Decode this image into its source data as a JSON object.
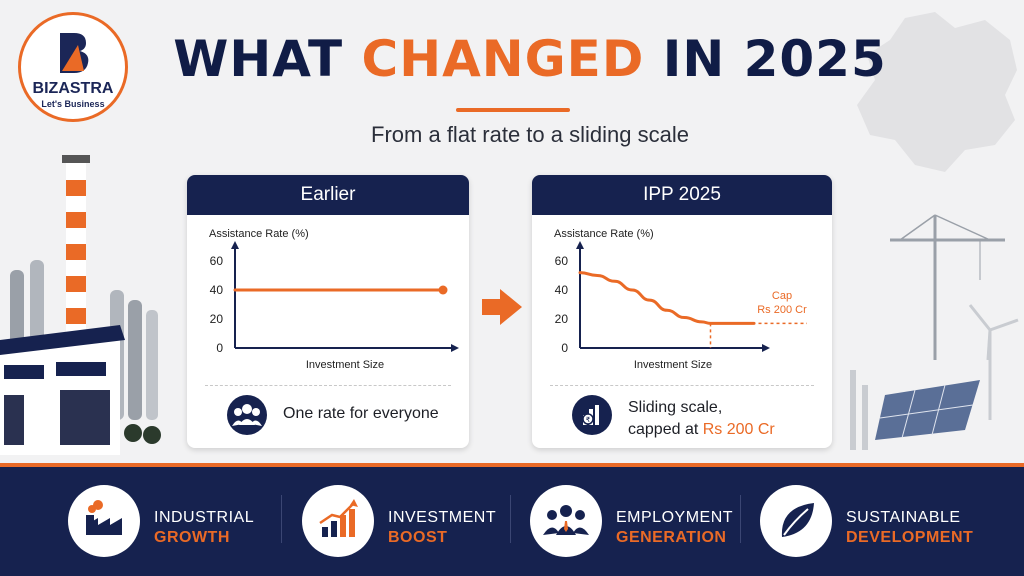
{
  "logo": {
    "name": "BIZASTRA",
    "tagline": "Let's Business"
  },
  "title": {
    "part1": "WHAT ",
    "accent": "CHANGED",
    "part2": " IN 2025"
  },
  "subtitle": "From a flat rate to a sliding scale",
  "colors": {
    "navy": "#16224f",
    "orange": "#ea6a26",
    "background": "#f2f2f3"
  },
  "cards": {
    "earlier": {
      "heading": "Earlier",
      "footer_icon": "people-group-icon",
      "footer_text": "One rate for everyone"
    },
    "ipp": {
      "heading": "IPP 2025",
      "cap_label_1": "Cap",
      "cap_label_2": "Rs 200 Cr",
      "footer_icon": "bar-chart-coin-icon",
      "footer_line1": "Sliding scale,",
      "footer_line2_prefix": "capped at ",
      "footer_line2_accent": "Rs 200 Cr"
    }
  },
  "chart_data": [
    {
      "type": "line",
      "ylabel": "Assistance Rate (%)",
      "xlabel": "Investment Size",
      "yticks": [
        "60",
        "40",
        "20",
        "0"
      ],
      "ylim": [
        0,
        60
      ],
      "x": [
        0,
        1
      ],
      "series": [
        {
          "values": [
            40,
            40
          ]
        }
      ]
    },
    {
      "type": "line",
      "ylabel": "Assistance Rate (%)",
      "xlabel": "Investment Size",
      "yticks": [
        "60",
        "40",
        "20",
        "0"
      ],
      "ylim": [
        0,
        60
      ],
      "x": [
        0,
        0.1,
        0.2,
        0.3,
        0.4,
        0.5,
        0.6,
        0.7,
        0.75,
        1
      ],
      "series": [
        {
          "values": [
            52,
            50,
            46,
            40,
            33,
            26,
            21,
            18,
            17,
            17
          ]
        }
      ],
      "annotation": "Cap Rs 200 Cr"
    }
  ],
  "features": [
    {
      "line1": "INDUSTRIAL",
      "line2": "GROWTH",
      "icon": "factory-icon"
    },
    {
      "line1": "INVESTMENT",
      "line2": "BOOST",
      "icon": "growth-chart-icon"
    },
    {
      "line1": "EMPLOYMENT",
      "line2": "GENERATION",
      "icon": "people-icon"
    },
    {
      "line1": "SUSTAINABLE",
      "line2": "DEVELOPMENT",
      "icon": "leaf-icon"
    }
  ]
}
